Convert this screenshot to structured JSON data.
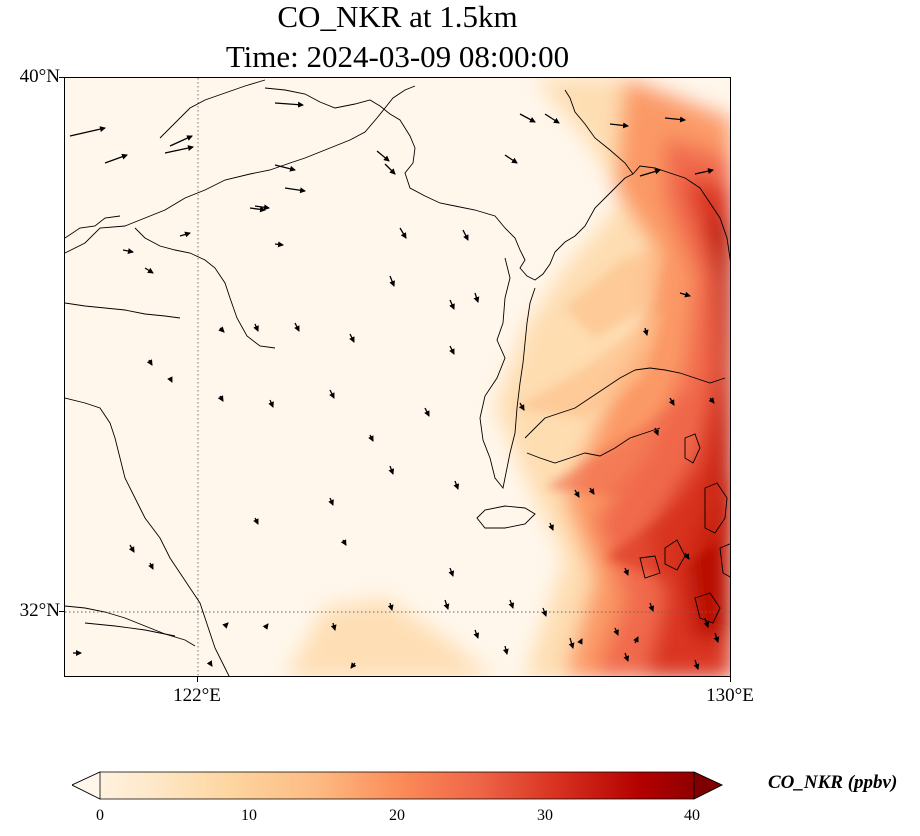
{
  "title": {
    "line1": "CO_NKR at 1.5km",
    "line2": "Time: 2024-03-09 08:00:00"
  },
  "axes": {
    "y_ticks": [
      {
        "label": "40°N",
        "value": 40
      },
      {
        "label": "32°N",
        "value": 32
      }
    ],
    "x_ticks": [
      {
        "label": "122°E",
        "value": 122
      },
      {
        "label": "130°E",
        "value": 130
      }
    ],
    "lon_range": [
      120,
      130
    ],
    "lat_range": [
      31,
      40
    ],
    "gridlines": "dotted at 122°E and 32°N"
  },
  "colorbar": {
    "label": "CO_NKR (ppbv)",
    "ticks": [
      "0",
      "10",
      "20",
      "30",
      "40"
    ],
    "min": 0,
    "max": 40,
    "colormap": [
      "#fff7ec",
      "#fee8c8",
      "#fdd49e",
      "#fdbb84",
      "#fc8d59",
      "#ef6548",
      "#d7301f",
      "#b30000",
      "#7f0000"
    ]
  },
  "map": {
    "field": "CO_NKR",
    "level": "1.5km",
    "units": "ppbv",
    "high_concentration_region": "Korean Peninsula and southern coastal waters (30-40 ppbv)",
    "low_concentration_region": "eastern China and Yellow Sea (0-5 ppbv)",
    "wind_vectors": "northwesterly to northerly flow across domain"
  }
}
